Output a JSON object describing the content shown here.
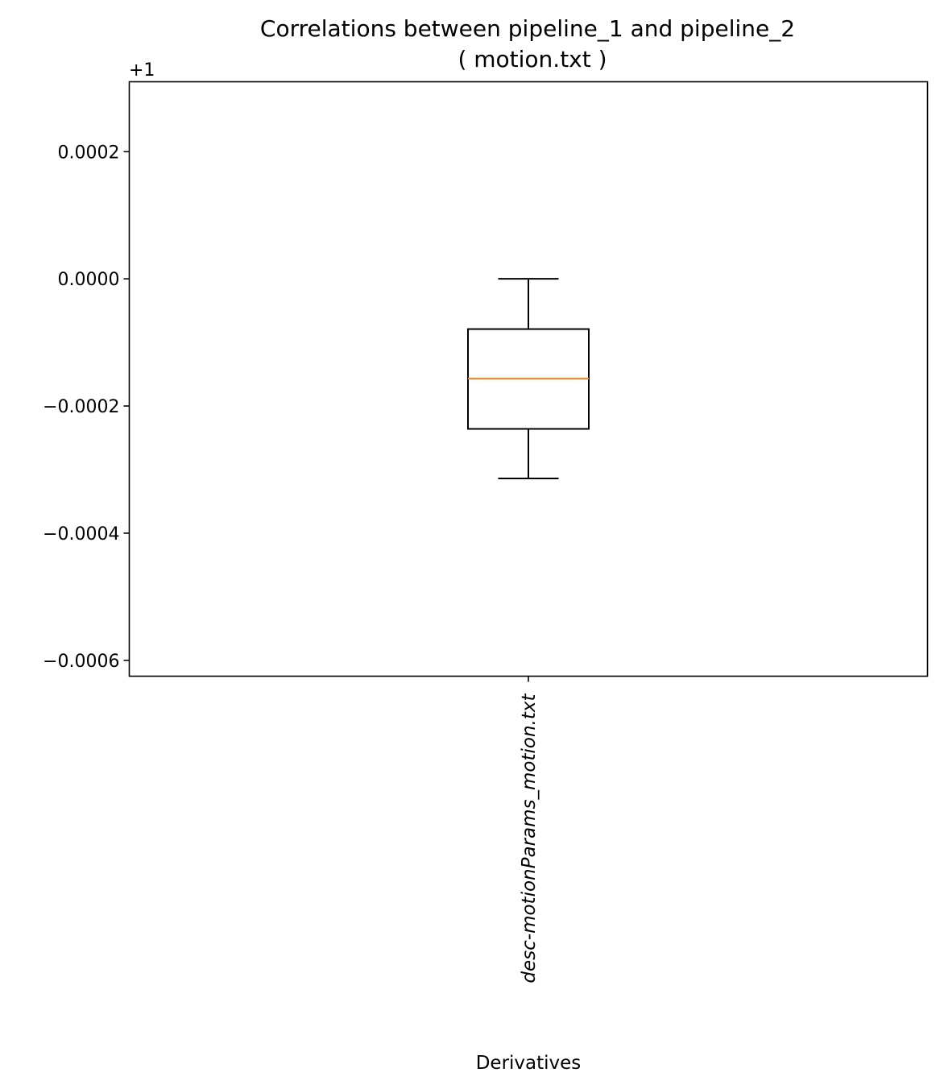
{
  "chart_data": {
    "type": "box",
    "title": [
      "Correlations between pipeline_1 and pipeline_2",
      "( motion.txt )"
    ],
    "xlabel": "Derivatives",
    "ylabel": "",
    "offset_label": "+1",
    "categories": [
      "desc-motionParams_motion.txt"
    ],
    "ylim": [
      -0.000625,
      0.00031
    ],
    "yticks": [
      0.0002,
      0.0,
      -0.0002,
      -0.0004,
      -0.0006
    ],
    "ytick_labels": [
      "0.0002",
      "0.0000",
      "−0.0002",
      "−0.0004",
      "−0.0006"
    ],
    "boxes": [
      {
        "category": "desc-motionParams_motion.txt",
        "whisker_low": -0.000314,
        "q1": -0.000236,
        "median": -0.000157,
        "q3": -7.9e-05,
        "whisker_high": 0.0
      }
    ],
    "grid": false,
    "legend": "none",
    "colors": {
      "box": "#000000",
      "median": "#ff7f0e"
    }
  }
}
